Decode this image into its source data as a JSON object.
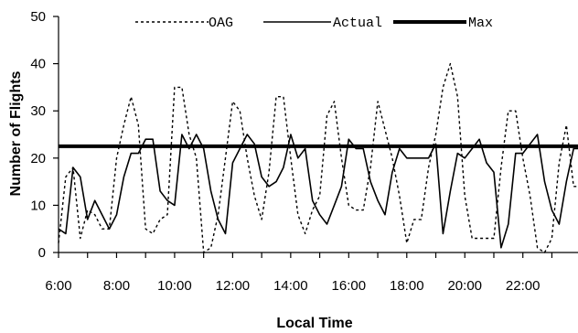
{
  "chart_data": {
    "type": "line",
    "xlabel": "Local Time",
    "ylabel": "Number of Flights",
    "ylim": [
      0,
      50
    ],
    "yticks": [
      0,
      10,
      20,
      30,
      40,
      50
    ],
    "xticks": [
      "6:00",
      "8:00",
      "10:00",
      "12:00",
      "14:00",
      "16:00",
      "18:00",
      "20:00",
      "22:00"
    ],
    "xlim": [
      6.0,
      23.9
    ],
    "grid": false,
    "legend_position": "top",
    "series": [
      {
        "name": "OAG",
        "style": "dotted",
        "x": [
          6.0,
          6.25,
          6.5,
          6.75,
          7.0,
          7.25,
          7.5,
          7.75,
          8.0,
          8.25,
          8.5,
          8.75,
          9.0,
          9.25,
          9.5,
          9.75,
          10.0,
          10.25,
          10.5,
          10.75,
          11.0,
          11.25,
          11.5,
          11.75,
          12.0,
          12.25,
          12.5,
          12.75,
          13.0,
          13.25,
          13.5,
          13.75,
          14.0,
          14.25,
          14.5,
          14.75,
          15.0,
          15.25,
          15.5,
          15.75,
          16.0,
          16.25,
          16.5,
          16.75,
          17.0,
          17.25,
          17.5,
          17.75,
          18.0,
          18.25,
          18.5,
          18.75,
          19.0,
          19.25,
          19.5,
          19.75,
          20.0,
          20.25,
          20.5,
          20.75,
          21.0,
          21.25,
          21.5,
          21.75,
          22.0,
          22.25,
          22.5,
          22.75,
          23.0,
          23.25,
          23.5,
          23.75,
          23.9
        ],
        "values": [
          2,
          16,
          18,
          3,
          9,
          8,
          5,
          5,
          20,
          27,
          33,
          27,
          5,
          4,
          7,
          8,
          35,
          35,
          25,
          20,
          0,
          1,
          8,
          20,
          32,
          30,
          20,
          12,
          7,
          17,
          33,
          33,
          20,
          8,
          4,
          9,
          12,
          29,
          32,
          20,
          10,
          9,
          9,
          18,
          32,
          26,
          20,
          12,
          2,
          7,
          7,
          18,
          25,
          35,
          40,
          33,
          12,
          3,
          3,
          3,
          3,
          18,
          30,
          30,
          20,
          12,
          1,
          0,
          3,
          19,
          27,
          14,
          14
        ]
      },
      {
        "name": "Actual",
        "style": "solid",
        "x": [
          6.0,
          6.25,
          6.5,
          6.75,
          7.0,
          7.25,
          7.5,
          7.75,
          8.0,
          8.25,
          8.5,
          8.75,
          9.0,
          9.25,
          9.5,
          9.75,
          10.0,
          10.25,
          10.5,
          10.75,
          11.0,
          11.25,
          11.5,
          11.75,
          12.0,
          12.25,
          12.5,
          12.75,
          13.0,
          13.25,
          13.5,
          13.75,
          14.0,
          14.25,
          14.5,
          14.75,
          15.0,
          15.25,
          15.5,
          15.75,
          16.0,
          16.25,
          16.5,
          16.75,
          17.0,
          17.25,
          17.5,
          17.75,
          18.0,
          18.25,
          18.5,
          18.75,
          19.0,
          19.25,
          19.5,
          19.75,
          20.0,
          20.25,
          20.5,
          20.75,
          21.0,
          21.25,
          21.5,
          21.75,
          22.0,
          22.25,
          22.5,
          22.75,
          23.0,
          23.25,
          23.5,
          23.75,
          23.9
        ],
        "values": [
          5,
          4,
          18,
          16,
          7,
          11,
          8,
          5,
          8,
          16,
          21,
          21,
          24,
          24,
          13,
          11,
          10,
          25,
          22,
          25,
          22,
          13,
          7,
          4,
          19,
          22,
          25,
          23,
          16,
          14,
          15,
          18,
          25,
          20,
          22,
          11,
          8,
          6,
          10,
          14,
          24,
          22,
          22,
          15,
          11,
          8,
          17,
          22,
          20,
          20,
          20,
          20,
          23,
          4,
          13,
          21,
          20,
          22,
          24,
          19,
          17,
          1,
          6,
          21,
          21,
          23,
          25,
          15,
          9,
          6,
          15,
          22,
          22
        ]
      },
      {
        "name": "Max",
        "style": "thick",
        "x": [
          6.0,
          23.9
        ],
        "values": [
          22.5,
          22.5
        ]
      }
    ]
  }
}
